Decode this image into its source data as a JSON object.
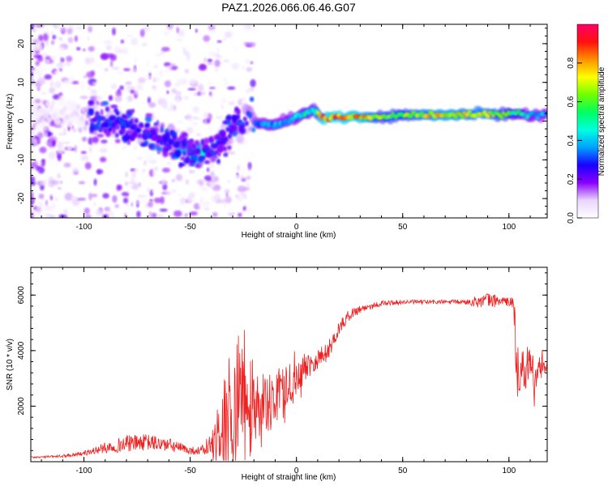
{
  "title": "PAZ1.2026.066.06.46.G07",
  "chart_data": [
    {
      "type": "heatmap",
      "xlabel": "Height of straight line (km)",
      "ylabel": "Frequency (Hz)",
      "xlim": [
        -125,
        118
      ],
      "ylim": [
        -25,
        25
      ],
      "xticks": [
        -100,
        -50,
        0,
        50,
        100
      ],
      "yticks": [
        -20,
        -10,
        0,
        10,
        20
      ],
      "colorbar": {
        "label": "Normalized spectral amplitude",
        "range": [
          0,
          1
        ],
        "ticks": [
          "0.0",
          "0.2",
          "0.4",
          "0.6",
          "0.8"
        ],
        "colors": [
          "#ffffff",
          "#e9d5ff",
          "#8a00ff",
          "#1a00ff",
          "#00a0ff",
          "#00ffe0",
          "#00ff60",
          "#70ff00",
          "#ffff00",
          "#ff9000",
          "#ff1010",
          "#ff0066"
        ]
      },
      "ridge_profile": {
        "height_km": [
          -120,
          -100,
          -90,
          -80,
          -70,
          -60,
          -50,
          -45,
          -40,
          -35,
          -30,
          -25,
          -20,
          -15,
          -10,
          -5,
          0,
          5,
          8,
          12,
          20,
          30,
          40,
          50,
          60,
          70,
          80,
          90,
          100,
          105,
          110,
          118
        ],
        "frequency_hz": [
          2,
          1,
          0,
          -1,
          -3,
          -6,
          -8,
          -8,
          -9,
          -5,
          -1,
          1,
          0,
          -1,
          -1,
          0,
          1,
          2,
          3,
          1,
          1,
          1,
          1,
          1.5,
          1.5,
          1.5,
          1.8,
          1.8,
          1.8,
          2,
          1.5,
          1.8
        ],
        "amplitude": [
          0.05,
          0.1,
          0.25,
          0.25,
          0.25,
          0.3,
          0.45,
          0.5,
          0.35,
          0.25,
          0.25,
          0.25,
          0.35,
          0.4,
          0.4,
          0.4,
          0.45,
          0.5,
          0.45,
          0.9,
          0.9,
          0.85,
          0.65,
          0.65,
          0.75,
          0.8,
          0.75,
          0.75,
          0.6,
          0.5,
          0.45,
          0.4
        ]
      }
    },
    {
      "type": "line",
      "xlabel": "Height of straight line (km)",
      "ylabel": "SNR (10 * v/v)",
      "xlim": [
        -125,
        118
      ],
      "ylim": [
        0,
        7000
      ],
      "xticks": [
        -100,
        -50,
        0,
        50,
        100
      ],
      "yticks": [
        2000,
        4000,
        6000
      ],
      "series": [
        {
          "name": "SNR",
          "color": "#ee2222",
          "x": [
            -125,
            -110,
            -100,
            -90,
            -80,
            -70,
            -60,
            -55,
            -50,
            -45,
            -40,
            -35,
            -30,
            -25,
            -20,
            -15,
            -10,
            -5,
            0,
            5,
            10,
            15,
            20,
            25,
            30,
            40,
            50,
            60,
            70,
            80,
            90,
            95,
            100,
            102,
            104,
            106,
            108,
            110,
            112,
            114,
            116,
            118
          ],
          "y": [
            150,
            200,
            300,
            500,
            650,
            700,
            600,
            500,
            400,
            400,
            600,
            1200,
            2200,
            2800,
            1800,
            2200,
            2300,
            2600,
            3000,
            3500,
            3700,
            4000,
            4800,
            5300,
            5500,
            5700,
            5750,
            5750,
            5750,
            5750,
            5800,
            5800,
            5750,
            5700,
            4000,
            3200,
            3500,
            3800,
            2800,
            3200,
            3600,
            3300
          ],
          "amplitude": [
            30,
            50,
            80,
            200,
            300,
            300,
            250,
            200,
            150,
            150,
            500,
            1500,
            2000,
            2000,
            1200,
            1000,
            900,
            900,
            700,
            500,
            400,
            350,
            250,
            200,
            150,
            100,
            80,
            80,
            80,
            100,
            300,
            200,
            150,
            300,
            1400,
            700,
            800,
            800,
            600,
            500,
            500,
            400
          ]
        }
      ]
    }
  ]
}
